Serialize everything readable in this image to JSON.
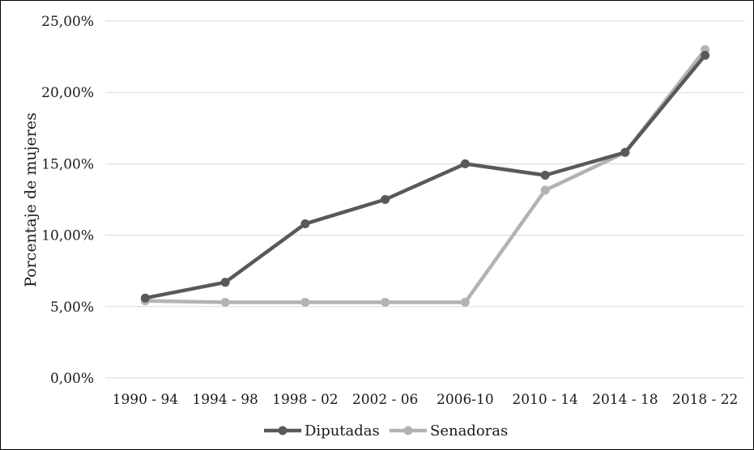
{
  "chart_data": {
    "type": "line",
    "title": "",
    "xlabel": "",
    "ylabel": "Porcentaje de mujeres",
    "categories": [
      "1990 - 94",
      "1994 - 98",
      "1998 - 02",
      "2002 - 06",
      "2006-10",
      "2010 - 14",
      "2014 - 18",
      "2018 - 22"
    ],
    "ylim": [
      0,
      25
    ],
    "yticks": [
      {
        "value": 0,
        "label": "0,00%"
      },
      {
        "value": 5,
        "label": "5,00%"
      },
      {
        "value": 10,
        "label": "10,00%"
      },
      {
        "value": 15,
        "label": "15,00%"
      },
      {
        "value": 20,
        "label": "20,00%"
      },
      {
        "value": 25,
        "label": "25,00%"
      }
    ],
    "grid": true,
    "legend_position": "bottom",
    "series": [
      {
        "name": "Diputadas",
        "color": "#595959",
        "values": [
          5.6,
          6.7,
          10.8,
          12.5,
          15.0,
          14.2,
          15.8,
          22.6
        ]
      },
      {
        "name": "Senadoras",
        "color": "#b3b3b3",
        "values": [
          5.4,
          5.3,
          5.3,
          5.3,
          5.3,
          13.15,
          15.8,
          23.0
        ]
      }
    ]
  }
}
